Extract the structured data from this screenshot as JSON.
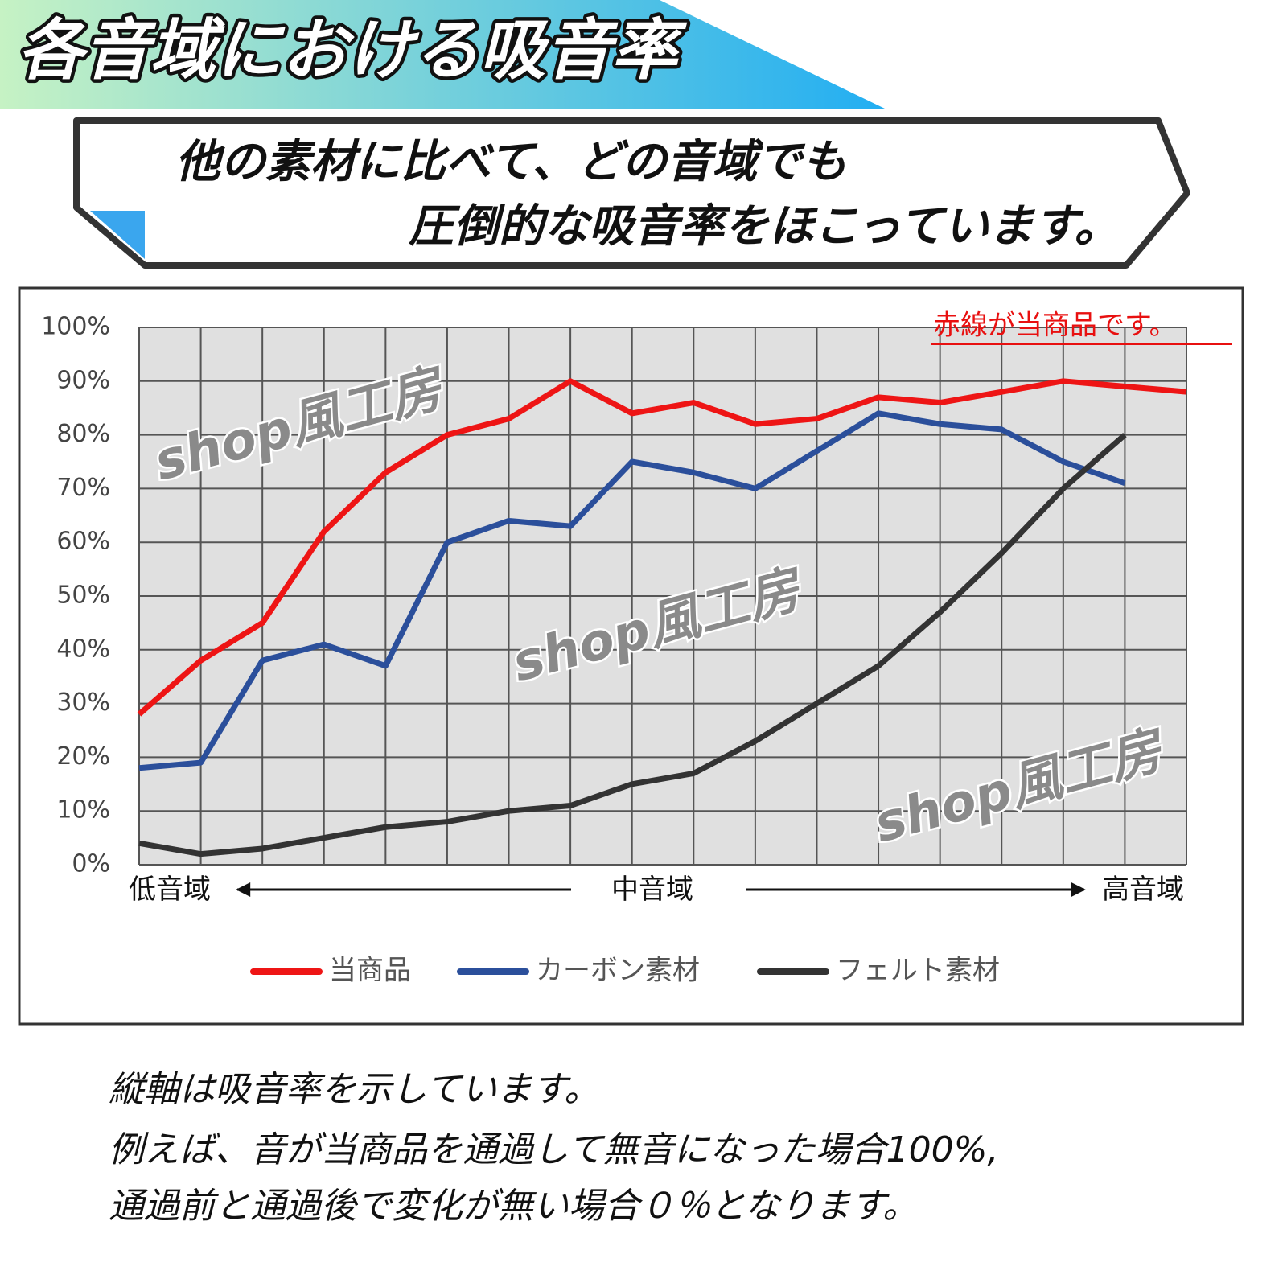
{
  "header": {
    "title": "各音域における吸音率"
  },
  "callout": {
    "line1": "他の素材に比べて、どの音域でも",
    "line2": "圧倒的な吸音率をほこっています。"
  },
  "chart_data": {
    "type": "line",
    "note": "赤線が当商品です。",
    "watermark": "shop風工房",
    "x_annotations": [
      "低音域",
      "中音域",
      "高音域"
    ],
    "categories": [
      null,
      null,
      null,
      null,
      null,
      null,
      null,
      null,
      null,
      null,
      null,
      null,
      null,
      null,
      null,
      null,
      null,
      null
    ],
    "series": [
      {
        "name": "当商品",
        "color": "#ee1515",
        "values": [
          28,
          38,
          45,
          62,
          73,
          80,
          83,
          90,
          84,
          86,
          82,
          83,
          87,
          86,
          88,
          90,
          89,
          88
        ]
      },
      {
        "name": "カーボン素材",
        "color": "#2b4f9b",
        "values": [
          18,
          19,
          38,
          41,
          37,
          60,
          64,
          63,
          75,
          73,
          70,
          77,
          84,
          82,
          81,
          75,
          71,
          null
        ]
      },
      {
        "name": "フェルト素材",
        "color": "#333333",
        "values": [
          4,
          2,
          3,
          5,
          7,
          8,
          10,
          11,
          15,
          17,
          23,
          30,
          37,
          47,
          58,
          70,
          80,
          null
        ]
      }
    ],
    "ylim": [
      0,
      100
    ],
    "yticks": [
      {
        "value": 0,
        "label": "0%"
      },
      {
        "value": 10,
        "label": "10%"
      },
      {
        "value": 20,
        "label": "20%"
      },
      {
        "value": 30,
        "label": "30%"
      },
      {
        "value": 40,
        "label": "40%"
      },
      {
        "value": 50,
        "label": "50%"
      },
      {
        "value": 60,
        "label": "60%"
      },
      {
        "value": 70,
        "label": "70%"
      },
      {
        "value": 80,
        "label": "80%"
      },
      {
        "value": 90,
        "label": "90%"
      },
      {
        "value": 100,
        "label": "100%"
      }
    ],
    "grid": true
  },
  "footer": {
    "lines": [
      "縦軸は吸音率を示しています。",
      "例えば、音が当商品を通過して無音になった場合100%,",
      "通過前と通過後で変化が無い場合０％となります。"
    ]
  }
}
